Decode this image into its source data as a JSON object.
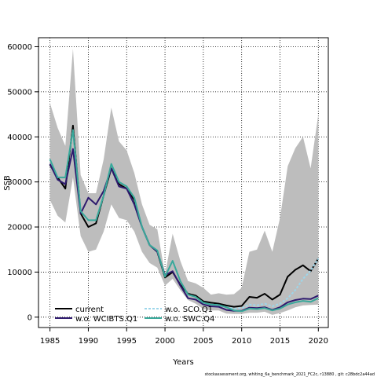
{
  "chart_data": {
    "type": "line",
    "title": "",
    "xlabel": "Years",
    "ylabel": "SSB",
    "xlim": [
      1983.5,
      2021.3
    ],
    "ylim": [
      -2300,
      62000
    ],
    "xticks": [
      1985,
      1990,
      1995,
      2000,
      2005,
      2010,
      2015,
      2020
    ],
    "yticks": [
      0,
      10000,
      20000,
      30000,
      40000,
      50000,
      60000
    ],
    "grid": "dotted",
    "legend_position": "bottom-left",
    "footnote": "stockassessment.org, whiting_6a_benchmark_2021_FC2c, r13880 , git: c28bdc2a44ad",
    "x": [
      1985,
      1986,
      1987,
      1988,
      1989,
      1990,
      1991,
      1992,
      1993,
      1994,
      1995,
      1996,
      1997,
      1998,
      1999,
      2000,
      2001,
      2002,
      2003,
      2004,
      2005,
      2006,
      2007,
      2008,
      2009,
      2010,
      2011,
      2012,
      2013,
      2014,
      2015,
      2016,
      2017,
      2018,
      2019,
      2020
    ],
    "confidence_band": {
      "upper": [
        47500,
        42000,
        38000,
        59500,
        31500,
        27500,
        27500,
        35000,
        46500,
        39000,
        37000,
        32000,
        25000,
        20500,
        19500,
        9500,
        18500,
        12500,
        8000,
        7500,
        6500,
        5000,
        5300,
        5000,
        5100,
        6500,
        14500,
        15000,
        19200,
        14500,
        22000,
        33500,
        37500,
        40000,
        33000,
        45000
      ],
      "lower": [
        26000,
        22500,
        21000,
        31000,
        18000,
        14500,
        15000,
        19000,
        25000,
        22000,
        21500,
        19000,
        14500,
        12000,
        11000,
        7000,
        8500,
        6000,
        3800,
        3000,
        1800,
        1500,
        1500,
        800,
        700,
        700,
        1000,
        1000,
        1200,
        500,
        900,
        1500,
        2200,
        2600,
        2700,
        2800
      ]
    },
    "series": [
      {
        "name": "current",
        "color": "#000000",
        "dash": "",
        "values": [
          33800,
          31000,
          28500,
          42500,
          23000,
          20000,
          20800,
          27000,
          33000,
          29500,
          28500,
          26000,
          20000,
          16000,
          14500,
          8800,
          10000,
          7200,
          5200,
          4800,
          3500,
          3200,
          3000,
          2600,
          2300,
          2500,
          4500,
          4300,
          5200,
          3900,
          5000,
          9000,
          10500,
          11500,
          10200,
          13000
        ]
      },
      {
        "name": "w.o. WCIBTS.Q1",
        "color": "#2e1a6e",
        "dash": "",
        "values": [
          34000,
          30500,
          29500,
          37300,
          23000,
          26500,
          25000,
          28000,
          33000,
          29000,
          28500,
          25000,
          20000,
          16000,
          14500,
          9300,
          10200,
          7000,
          4200,
          3900,
          2800,
          2400,
          2300,
          1600,
          1400,
          1400,
          2100,
          2000,
          2200,
          1600,
          2200,
          3300,
          3800,
          4100,
          4000,
          4800
        ]
      },
      {
        "name": "w.o. SCO.Q1",
        "color": "#9dd6ea",
        "dash": "3,2",
        "values": [
          35000,
          31000,
          31000,
          41500,
          23500,
          21500,
          21500,
          27000,
          34000,
          30000,
          29000,
          26500,
          20000,
          16000,
          14800,
          9000,
          12500,
          8000,
          5000,
          4500,
          3200,
          2800,
          2700,
          2200,
          1900,
          2000,
          2800,
          2600,
          3000,
          2400,
          3000,
          4200,
          6000,
          8500,
          10300,
          13000
        ]
      },
      {
        "name": "w.o. SWC.Q4",
        "color": "#39a89a",
        "dash": "",
        "values": [
          35000,
          31000,
          31000,
          41500,
          23500,
          21500,
          21500,
          27000,
          34000,
          30000,
          29000,
          26500,
          20000,
          16000,
          14800,
          9000,
          12500,
          8000,
          5000,
          4500,
          3200,
          2800,
          2700,
          2200,
          1500,
          1300,
          1900,
          1800,
          2000,
          1500,
          1900,
          2800,
          3300,
          3600,
          3400,
          4200
        ]
      }
    ]
  },
  "legend": {
    "items": [
      {
        "label": "current",
        "color": "#000000",
        "dash": ""
      },
      {
        "label": "w.o. WCIBTS.Q1",
        "color": "#2e1a6e",
        "dash": ""
      },
      {
        "label": "w.o. SCO.Q1",
        "color": "#9dd6ea",
        "dash": "3,2"
      },
      {
        "label": "w.o. SWC.Q4",
        "color": "#39a89a",
        "dash": ""
      }
    ]
  }
}
